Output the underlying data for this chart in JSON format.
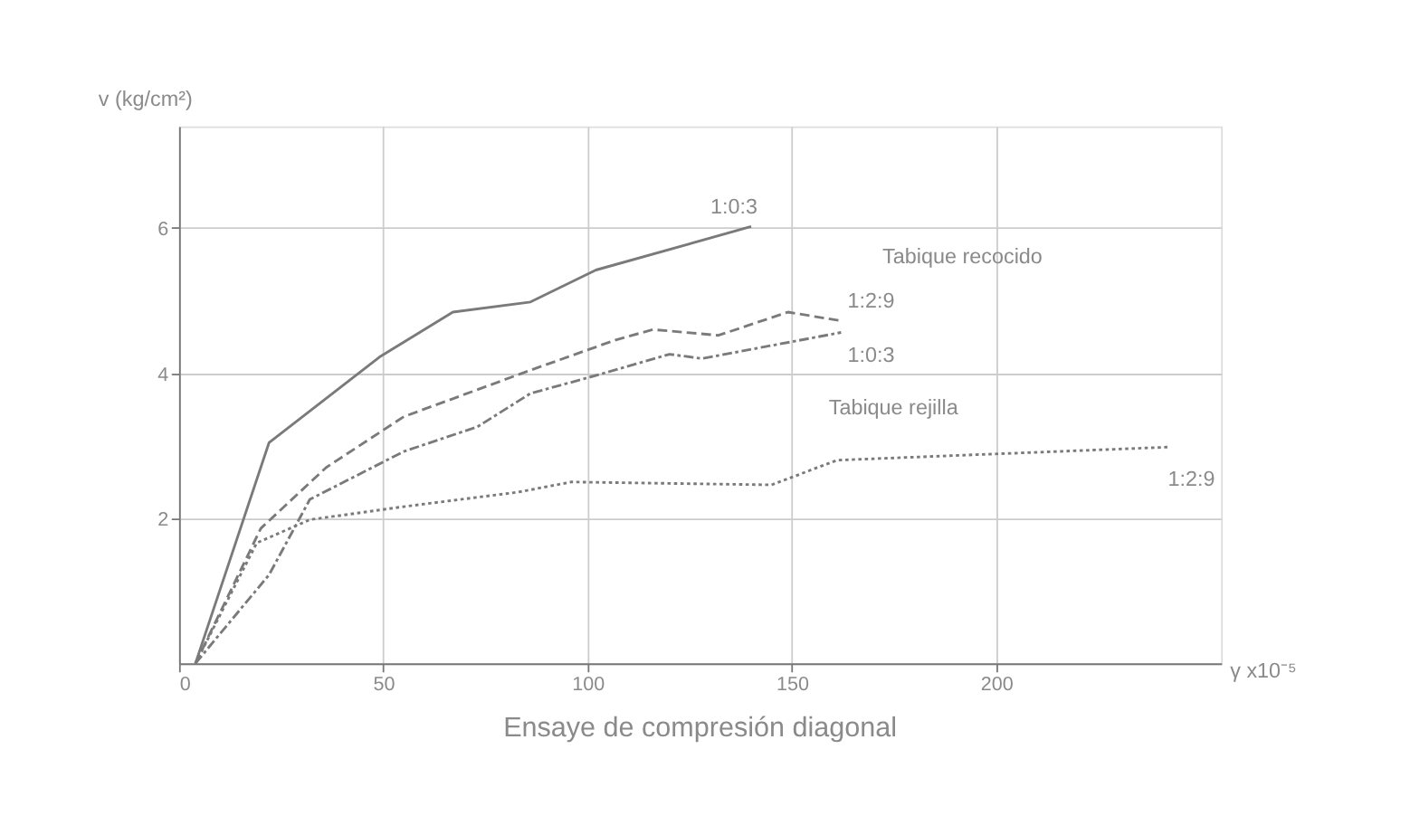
{
  "chart_data": {
    "type": "line",
    "title": "Ensaye de compresión diagonal",
    "xlabel": "γ x10⁻⁵",
    "ylabel": "v (kg/cm²)",
    "xlim": [
      0,
      255
    ],
    "xticks": [
      0,
      50,
      100,
      150,
      200
    ],
    "ylim": [
      0,
      7.4
    ],
    "yticks": [
      2,
      4,
      6
    ],
    "grid": true,
    "series": [
      {
        "name": "1:0:3",
        "color": "#7a7a7a",
        "line_style": "solid",
        "x": [
          4,
          22,
          49,
          67,
          86,
          102,
          140
        ],
        "values": [
          0,
          3.04,
          4.22,
          4.84,
          4.98,
          5.42,
          6.02
        ]
      },
      {
        "name": "1:2:9",
        "color": "#7a7a7a",
        "line_style": "dashed",
        "x": [
          4,
          20,
          36,
          55,
          86,
          107,
          116,
          132,
          149,
          162
        ],
        "values": [
          0,
          1.86,
          2.7,
          3.4,
          4.04,
          4.46,
          4.6,
          4.52,
          4.84,
          4.72
        ]
      },
      {
        "name": "1:0:3",
        "color": "#7a7a7a",
        "line_style": "dashdot",
        "x": [
          4,
          22,
          32,
          55,
          73,
          86,
          99,
          120,
          128,
          162
        ],
        "values": [
          0,
          1.22,
          2.26,
          2.92,
          3.26,
          3.72,
          3.92,
          4.26,
          4.2,
          4.56
        ]
      },
      {
        "name": "1:2:9",
        "color": "#7a7a7a",
        "line_style": "dotted",
        "x": [
          4,
          19,
          32,
          55,
          83,
          96,
          120,
          145,
          161,
          215,
          242
        ],
        "values": [
          0,
          1.66,
          1.98,
          2.16,
          2.36,
          2.5,
          2.48,
          2.46,
          2.8,
          2.92,
          2.98
        ]
      }
    ],
    "annotations": [
      "Tabique recocido",
      "Tabique rejilla"
    ]
  }
}
